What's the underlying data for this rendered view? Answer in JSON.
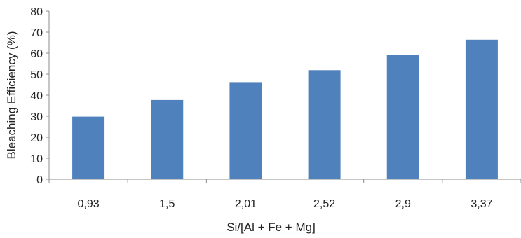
{
  "chart_data": {
    "type": "bar",
    "title": "",
    "xlabel": "Si/[Al + Fe + Mg]",
    "ylabel": "Bleaching Efficiency (%)",
    "categories": [
      "0,93",
      "1,5",
      "2,01",
      "2,52",
      "2,9",
      "3,37"
    ],
    "values": [
      29.8,
      37.7,
      46.2,
      51.9,
      59.0,
      66.4
    ],
    "ylim": [
      0,
      80
    ],
    "yticks": [
      "0",
      "10",
      "20",
      "30",
      "40",
      "50",
      "60",
      "70",
      "80"
    ],
    "grid": false,
    "legend": "none",
    "colors": {
      "bar": "#4f81bd",
      "axis": "#8c8c8c",
      "text": "#222222"
    }
  }
}
